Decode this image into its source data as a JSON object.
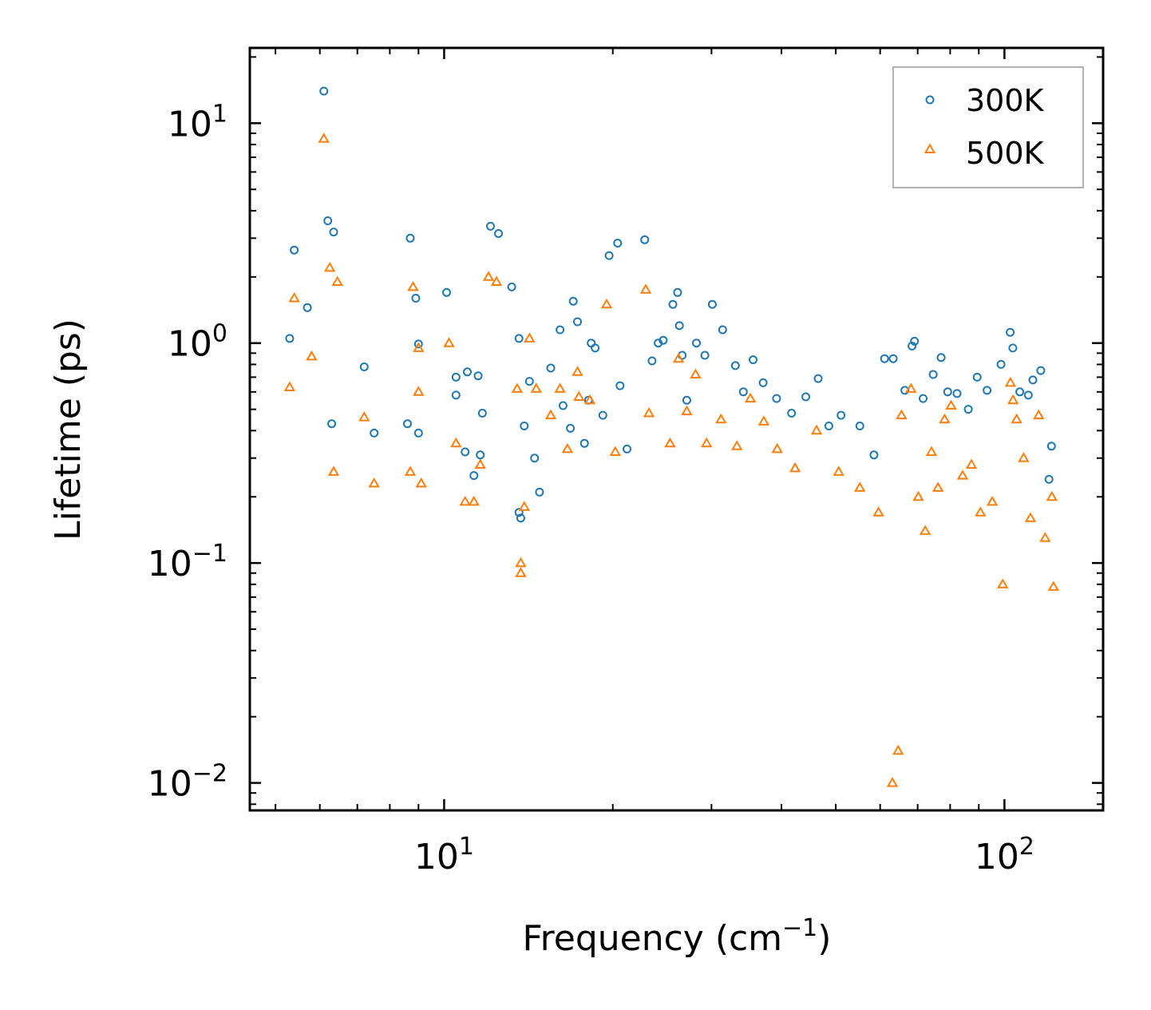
{
  "chart_data": {
    "type": "scatter",
    "title": "",
    "xlabel": "Frequency (cm",
    "xlabel_sup": "−1",
    "xlabel_tail": ")",
    "ylabel": "Lifetime (ps)",
    "x_scale": "log",
    "y_scale": "log",
    "xlim": [
      4.5,
      150
    ],
    "ylim": [
      0.0075,
      22
    ],
    "grid": false,
    "legend_position": "top-right",
    "x_ticks": [
      {
        "value": 10,
        "base": "10",
        "exp": "1"
      },
      {
        "value": 100,
        "base": "10",
        "exp": "2"
      }
    ],
    "y_ticks": [
      {
        "value": 10,
        "base": "10",
        "exp": "1"
      },
      {
        "value": 1,
        "base": "10",
        "exp": "0"
      },
      {
        "value": 0.1,
        "base": "10",
        "exp": "−1"
      },
      {
        "value": 0.01,
        "base": "10",
        "exp": "−2"
      }
    ],
    "series": [
      {
        "name": "300K",
        "marker": "circle",
        "color": "#1f77b4",
        "points": [
          [
            5.3,
            1.05
          ],
          [
            5.4,
            2.65
          ],
          [
            5.7,
            1.45
          ],
          [
            6.1,
            14.0
          ],
          [
            6.2,
            3.6
          ],
          [
            6.3,
            0.43
          ],
          [
            6.35,
            3.2
          ],
          [
            7.2,
            0.78
          ],
          [
            7.5,
            0.39
          ],
          [
            8.6,
            0.43
          ],
          [
            8.7,
            3.0
          ],
          [
            8.9,
            1.6
          ],
          [
            9.0,
            0.99
          ],
          [
            9.0,
            0.39
          ],
          [
            10.1,
            1.7
          ],
          [
            10.5,
            0.7
          ],
          [
            10.5,
            0.58
          ],
          [
            10.9,
            0.32
          ],
          [
            11.0,
            0.74
          ],
          [
            11.3,
            0.25
          ],
          [
            11.5,
            0.71
          ],
          [
            11.6,
            0.31
          ],
          [
            11.7,
            0.48
          ],
          [
            12.1,
            3.4
          ],
          [
            12.5,
            3.15
          ],
          [
            13.2,
            1.8
          ],
          [
            13.6,
            1.05
          ],
          [
            13.6,
            0.17
          ],
          [
            13.7,
            0.16
          ],
          [
            13.9,
            0.42
          ],
          [
            14.2,
            0.67
          ],
          [
            14.5,
            0.3
          ],
          [
            14.8,
            0.21
          ],
          [
            15.5,
            0.77
          ],
          [
            16.1,
            1.15
          ],
          [
            16.3,
            0.52
          ],
          [
            16.8,
            0.41
          ],
          [
            17.0,
            1.55
          ],
          [
            17.3,
            1.25
          ],
          [
            17.8,
            0.35
          ],
          [
            18.1,
            0.55
          ],
          [
            18.3,
            1.0
          ],
          [
            18.6,
            0.95
          ],
          [
            19.2,
            0.47
          ],
          [
            19.7,
            2.5
          ],
          [
            20.4,
            2.85
          ],
          [
            20.6,
            0.64
          ],
          [
            21.2,
            0.33
          ],
          [
            22.8,
            2.95
          ],
          [
            23.5,
            0.83
          ],
          [
            24.1,
            1.0
          ],
          [
            24.6,
            1.03
          ],
          [
            25.6,
            1.5
          ],
          [
            26.1,
            1.7
          ],
          [
            26.3,
            1.2
          ],
          [
            26.6,
            0.88
          ],
          [
            27.1,
            0.55
          ],
          [
            28.2,
            1.0
          ],
          [
            29.2,
            0.88
          ],
          [
            30.1,
            1.5
          ],
          [
            31.4,
            1.15
          ],
          [
            33.1,
            0.79
          ],
          [
            34.2,
            0.6
          ],
          [
            35.6,
            0.84
          ],
          [
            37.1,
            0.66
          ],
          [
            39.2,
            0.56
          ],
          [
            41.7,
            0.48
          ],
          [
            44.2,
            0.57
          ],
          [
            46.5,
            0.69
          ],
          [
            48.6,
            0.42
          ],
          [
            51.1,
            0.47
          ],
          [
            55.2,
            0.42
          ],
          [
            58.5,
            0.31
          ],
          [
            61.1,
            0.85
          ],
          [
            63.3,
            0.85
          ],
          [
            66.4,
            0.61
          ],
          [
            68.4,
            0.97
          ],
          [
            69.1,
            1.02
          ],
          [
            71.6,
            0.56
          ],
          [
            74.6,
            0.72
          ],
          [
            77.1,
            0.86
          ],
          [
            79.2,
            0.6
          ],
          [
            82.3,
            0.59
          ],
          [
            86.2,
            0.5
          ],
          [
            89.4,
            0.7
          ],
          [
            93.1,
            0.61
          ],
          [
            98.6,
            0.8
          ],
          [
            102.4,
            1.12
          ],
          [
            103.5,
            0.95
          ],
          [
            106.5,
            0.6
          ],
          [
            110.3,
            0.58
          ],
          [
            112.4,
            0.68
          ],
          [
            116.1,
            0.75
          ],
          [
            120.1,
            0.24
          ],
          [
            121.3,
            0.34
          ]
        ]
      },
      {
        "name": "500K",
        "marker": "triangle",
        "color": "#ff7f0e",
        "points": [
          [
            5.3,
            0.63
          ],
          [
            5.4,
            1.6
          ],
          [
            5.8,
            0.87
          ],
          [
            6.1,
            8.5
          ],
          [
            6.25,
            2.2
          ],
          [
            6.35,
            0.26
          ],
          [
            6.45,
            1.9
          ],
          [
            7.2,
            0.46
          ],
          [
            7.5,
            0.23
          ],
          [
            8.7,
            0.26
          ],
          [
            8.8,
            1.8
          ],
          [
            9.0,
            0.6
          ],
          [
            9.0,
            0.95
          ],
          [
            9.1,
            0.23
          ],
          [
            10.2,
            1.0
          ],
          [
            10.5,
            0.35
          ],
          [
            10.9,
            0.19
          ],
          [
            11.3,
            0.19
          ],
          [
            11.6,
            0.28
          ],
          [
            12.0,
            2.0
          ],
          [
            12.4,
            1.9
          ],
          [
            13.5,
            0.62
          ],
          [
            13.7,
            0.1
          ],
          [
            13.7,
            0.09
          ],
          [
            13.9,
            0.18
          ],
          [
            14.2,
            1.05
          ],
          [
            14.6,
            0.62
          ],
          [
            15.5,
            0.47
          ],
          [
            16.1,
            0.62
          ],
          [
            16.6,
            0.33
          ],
          [
            17.3,
            0.74
          ],
          [
            17.4,
            0.57
          ],
          [
            18.2,
            0.55
          ],
          [
            19.5,
            1.5
          ],
          [
            20.2,
            0.32
          ],
          [
            22.9,
            1.75
          ],
          [
            23.2,
            0.48
          ],
          [
            25.3,
            0.35
          ],
          [
            26.2,
            0.85
          ],
          [
            27.1,
            0.49
          ],
          [
            28.1,
            0.72
          ],
          [
            29.4,
            0.35
          ],
          [
            31.2,
            0.45
          ],
          [
            33.3,
            0.34
          ],
          [
            35.2,
            0.56
          ],
          [
            37.2,
            0.44
          ],
          [
            39.3,
            0.33
          ],
          [
            42.3,
            0.27
          ],
          [
            46.2,
            0.4
          ],
          [
            50.6,
            0.26
          ],
          [
            55.2,
            0.22
          ],
          [
            59.6,
            0.17
          ],
          [
            63.1,
            0.01
          ],
          [
            64.6,
            0.014
          ],
          [
            65.5,
            0.47
          ],
          [
            68.1,
            0.62
          ],
          [
            70.2,
            0.2
          ],
          [
            72.2,
            0.14
          ],
          [
            74.1,
            0.32
          ],
          [
            76.1,
            0.22
          ],
          [
            78.2,
            0.45
          ],
          [
            80.3,
            0.52
          ],
          [
            84.2,
            0.25
          ],
          [
            87.3,
            0.28
          ],
          [
            90.6,
            0.17
          ],
          [
            95.1,
            0.19
          ],
          [
            99.3,
            0.08
          ],
          [
            102.5,
            0.66
          ],
          [
            103.6,
            0.55
          ],
          [
            105.1,
            0.45
          ],
          [
            108.2,
            0.3
          ],
          [
            111.3,
            0.16
          ],
          [
            115.1,
            0.47
          ],
          [
            118.2,
            0.13
          ],
          [
            121.5,
            0.2
          ],
          [
            122.3,
            0.078
          ]
        ]
      }
    ]
  }
}
